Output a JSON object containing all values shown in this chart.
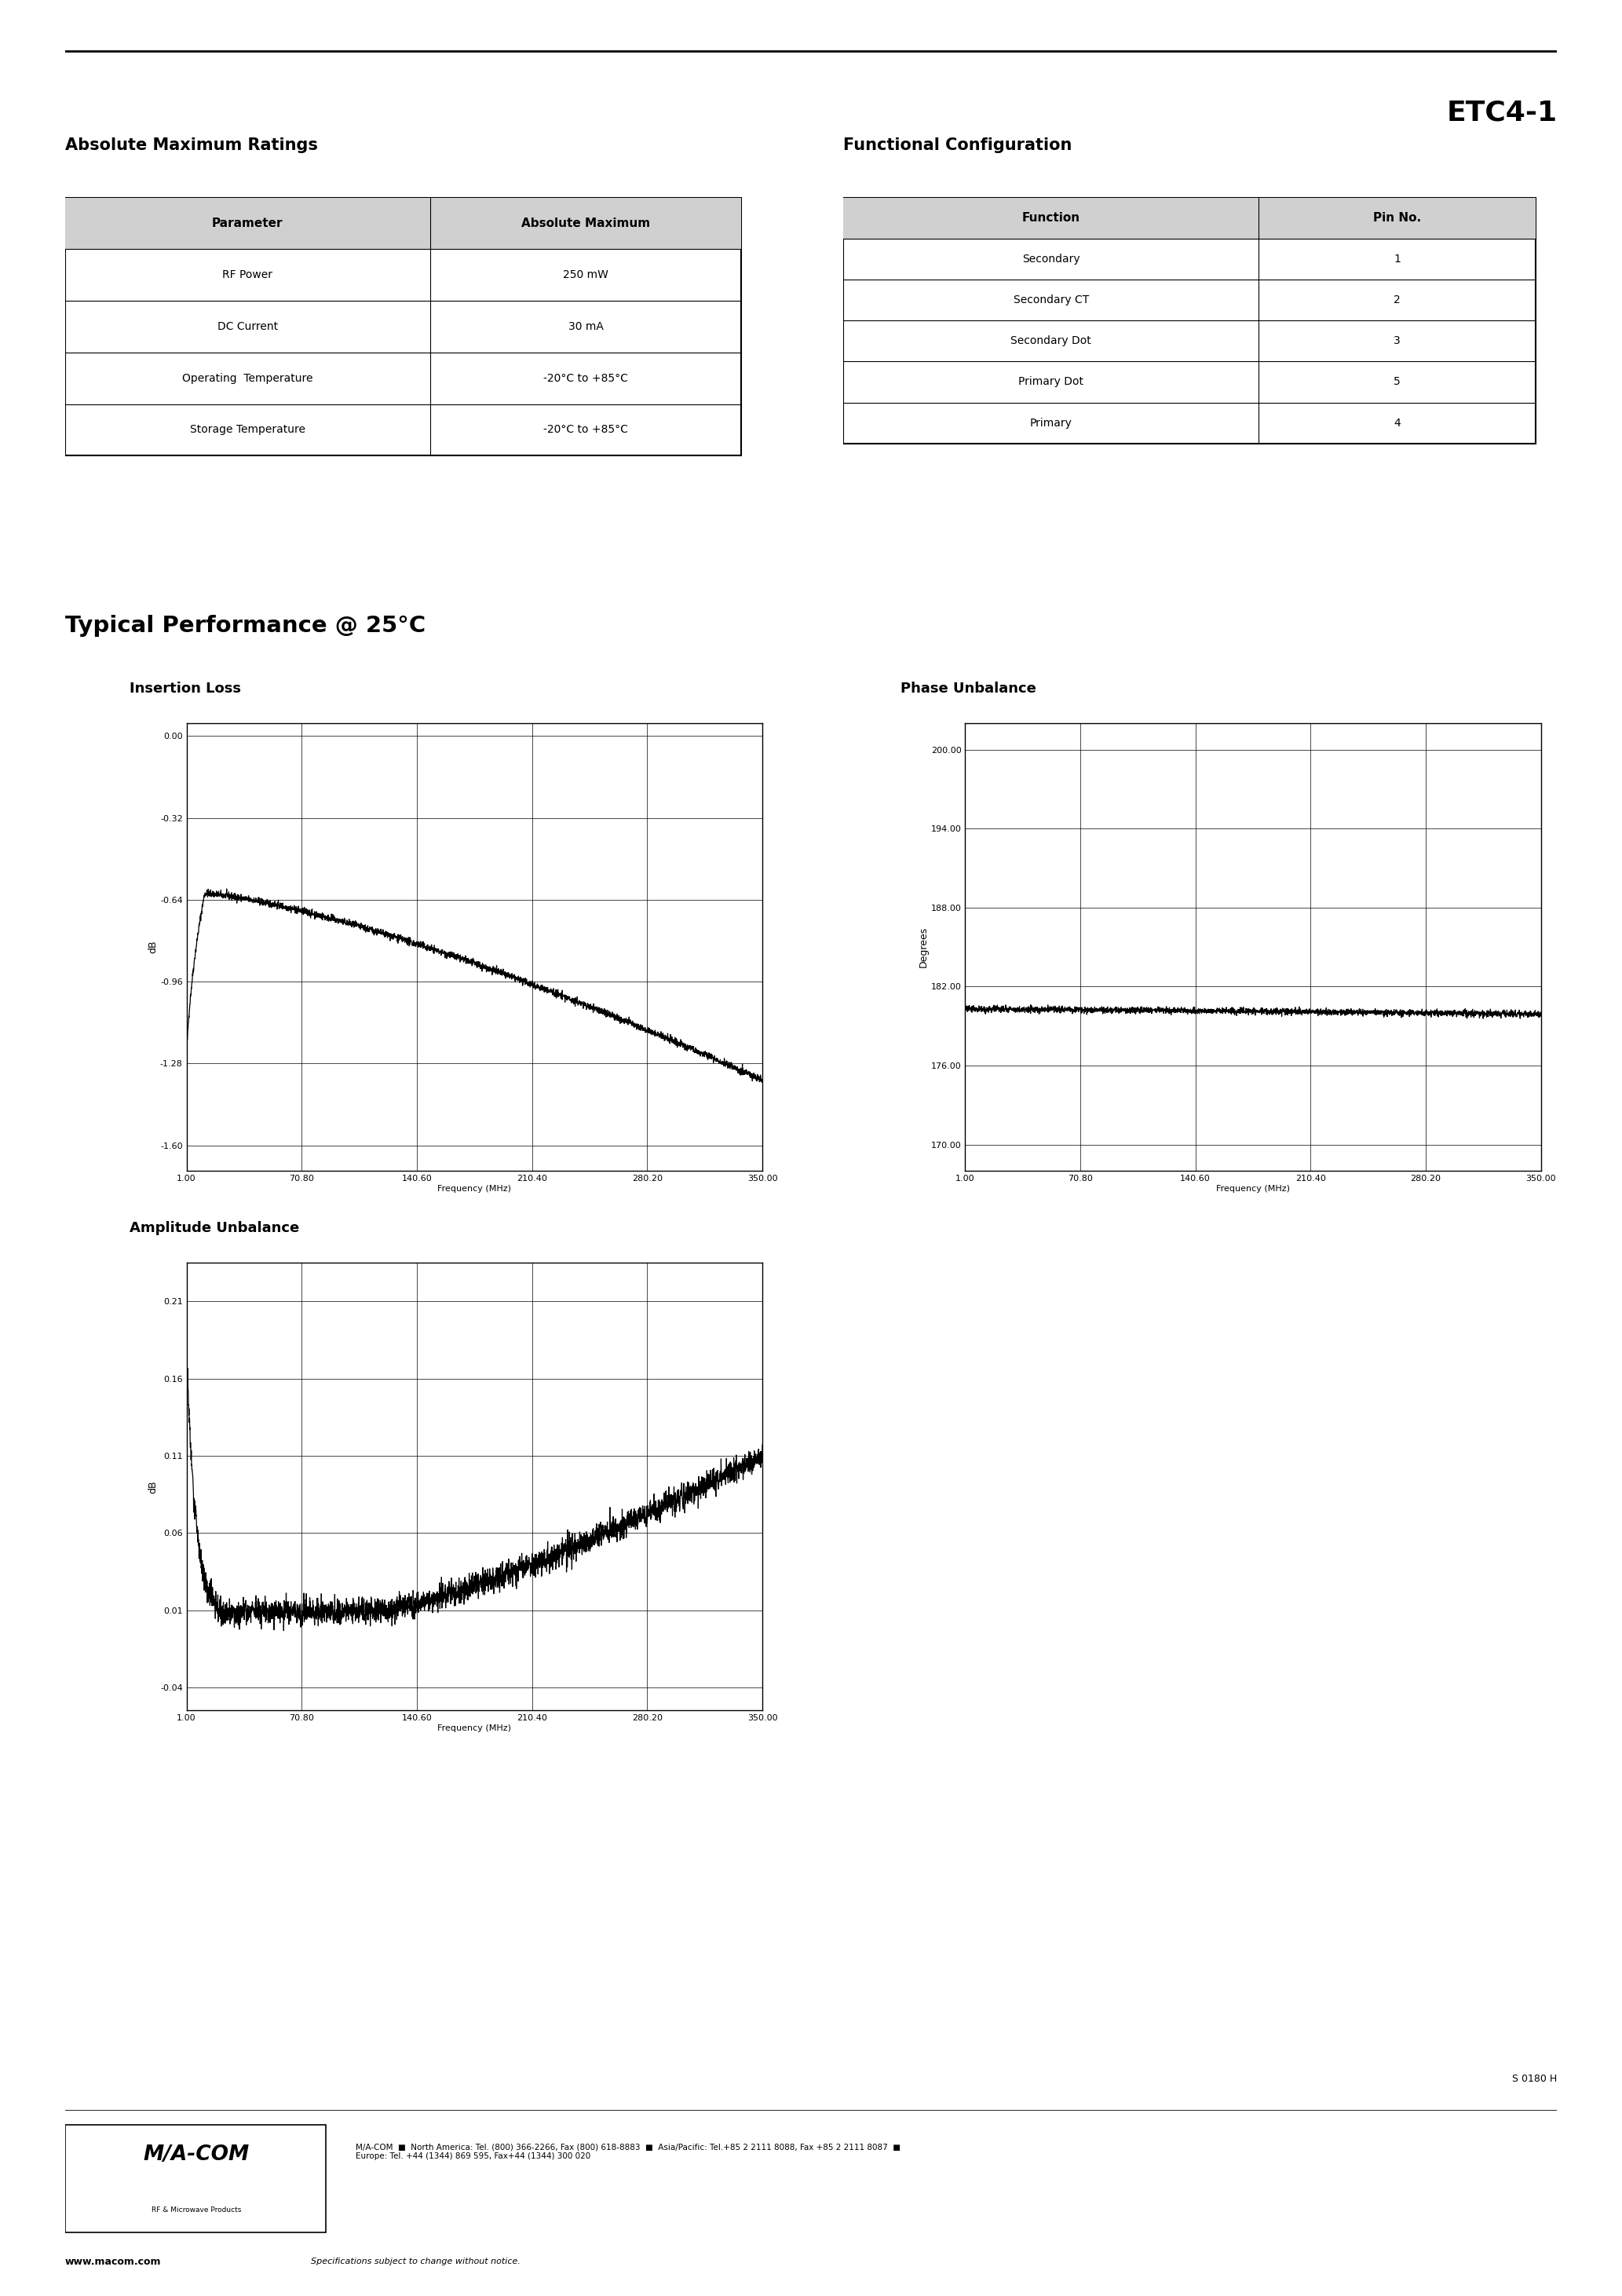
{
  "title": "ETC4-1",
  "page_bg": "#ffffff",
  "abs_max_title": "Absolute Maximum Ratings",
  "abs_max_headers": [
    "Parameter",
    "Absolute Maximum"
  ],
  "abs_max_rows": [
    [
      "RF Power",
      "250 mW"
    ],
    [
      "DC Current",
      "30 mA"
    ],
    [
      "Operating  Temperature",
      "-20°C to +85°C"
    ],
    [
      "Storage Temperature",
      "-20°C to +85°C"
    ]
  ],
  "func_config_title": "Functional Configuration",
  "func_config_headers": [
    "Function",
    "Pin No."
  ],
  "func_config_rows": [
    [
      "Secondary",
      "1"
    ],
    [
      "Secondary CT",
      "2"
    ],
    [
      "Secondary Dot",
      "3"
    ],
    [
      "Primary Dot",
      "5"
    ],
    [
      "Primary",
      "4"
    ]
  ],
  "typical_perf_title": "Typical Performance @ 25°C",
  "insertion_loss_title": "Insertion Loss",
  "insertion_loss_ylabel": "dB",
  "insertion_loss_xlabel": "Frequency (MHz)",
  "insertion_loss_yticks": [
    0.0,
    -0.32,
    -0.64,
    -0.96,
    -1.28,
    -1.6
  ],
  "insertion_loss_ytick_labels": [
    "0.00",
    "-0.32",
    "-0.64",
    "-0.96",
    "-1.28",
    "-1.60"
  ],
  "insertion_loss_xticks": [
    1.0,
    70.8,
    140.6,
    210.4,
    280.2,
    350.0
  ],
  "insertion_loss_xtick_labels": [
    "1.00",
    "70.80",
    "140.60",
    "210.40",
    "280.20",
    "350.00"
  ],
  "insertion_loss_ylim": [
    -1.7,
    0.05
  ],
  "insertion_loss_xlim": [
    1.0,
    350.0
  ],
  "phase_unbalance_title": "Phase Unbalance",
  "phase_unbalance_ylabel": "Degrees",
  "phase_unbalance_xlabel": "Frequency (MHz)",
  "phase_unbalance_yticks": [
    170.0,
    176.0,
    182.0,
    188.0,
    194.0,
    200.0
  ],
  "phase_unbalance_ytick_labels": [
    "170.00",
    "176.00",
    "182.00",
    "188.00",
    "194.00",
    "200.00"
  ],
  "phase_unbalance_xticks": [
    1.0,
    70.8,
    140.6,
    210.4,
    280.2,
    350.0
  ],
  "phase_unbalance_xtick_labels": [
    "1.00",
    "70.80",
    "140.60",
    "210.40",
    "280.20",
    "350.00"
  ],
  "phase_unbalance_ylim": [
    168.0,
    202.0
  ],
  "phase_unbalance_xlim": [
    1.0,
    350.0
  ],
  "amplitude_unbalance_title": "Amplitude Unbalance",
  "amplitude_unbalance_ylabel": "dB",
  "amplitude_unbalance_xlabel": "Frequency (MHz)",
  "amplitude_unbalance_yticks": [
    -0.04,
    0.01,
    0.06,
    0.11,
    0.16,
    0.21
  ],
  "amplitude_unbalance_ytick_labels": [
    "-0.04",
    "0.01",
    "0.06",
    "0.11",
    "0.16",
    "0.21"
  ],
  "amplitude_unbalance_xticks": [
    1.0,
    70.8,
    140.6,
    210.4,
    280.2,
    350.0
  ],
  "amplitude_unbalance_xtick_labels": [
    "1.00",
    "70.80",
    "140.60",
    "210.40",
    "280.20",
    "350.00"
  ],
  "amplitude_unbalance_ylim": [
    -0.055,
    0.235
  ],
  "amplitude_unbalance_xlim": [
    1.0,
    350.0
  ],
  "footer_code": "S 0180 H",
  "footer_company": "M/A-COM",
  "footer_address": "M/A-COM  ■  North America: Tel. (800) 366-2266, Fax (800) 618-8883  ■  Asia/Pacific: Tel.+85 2 2111 8088, Fax +85 2 2111 8087  ■\nEurope: Tel. +44 (1344) 869 595, Fax+44 (1344) 300 020",
  "footer_website": "www.macom.com",
  "footer_disclaimer": "Specifications subject to change without notice."
}
